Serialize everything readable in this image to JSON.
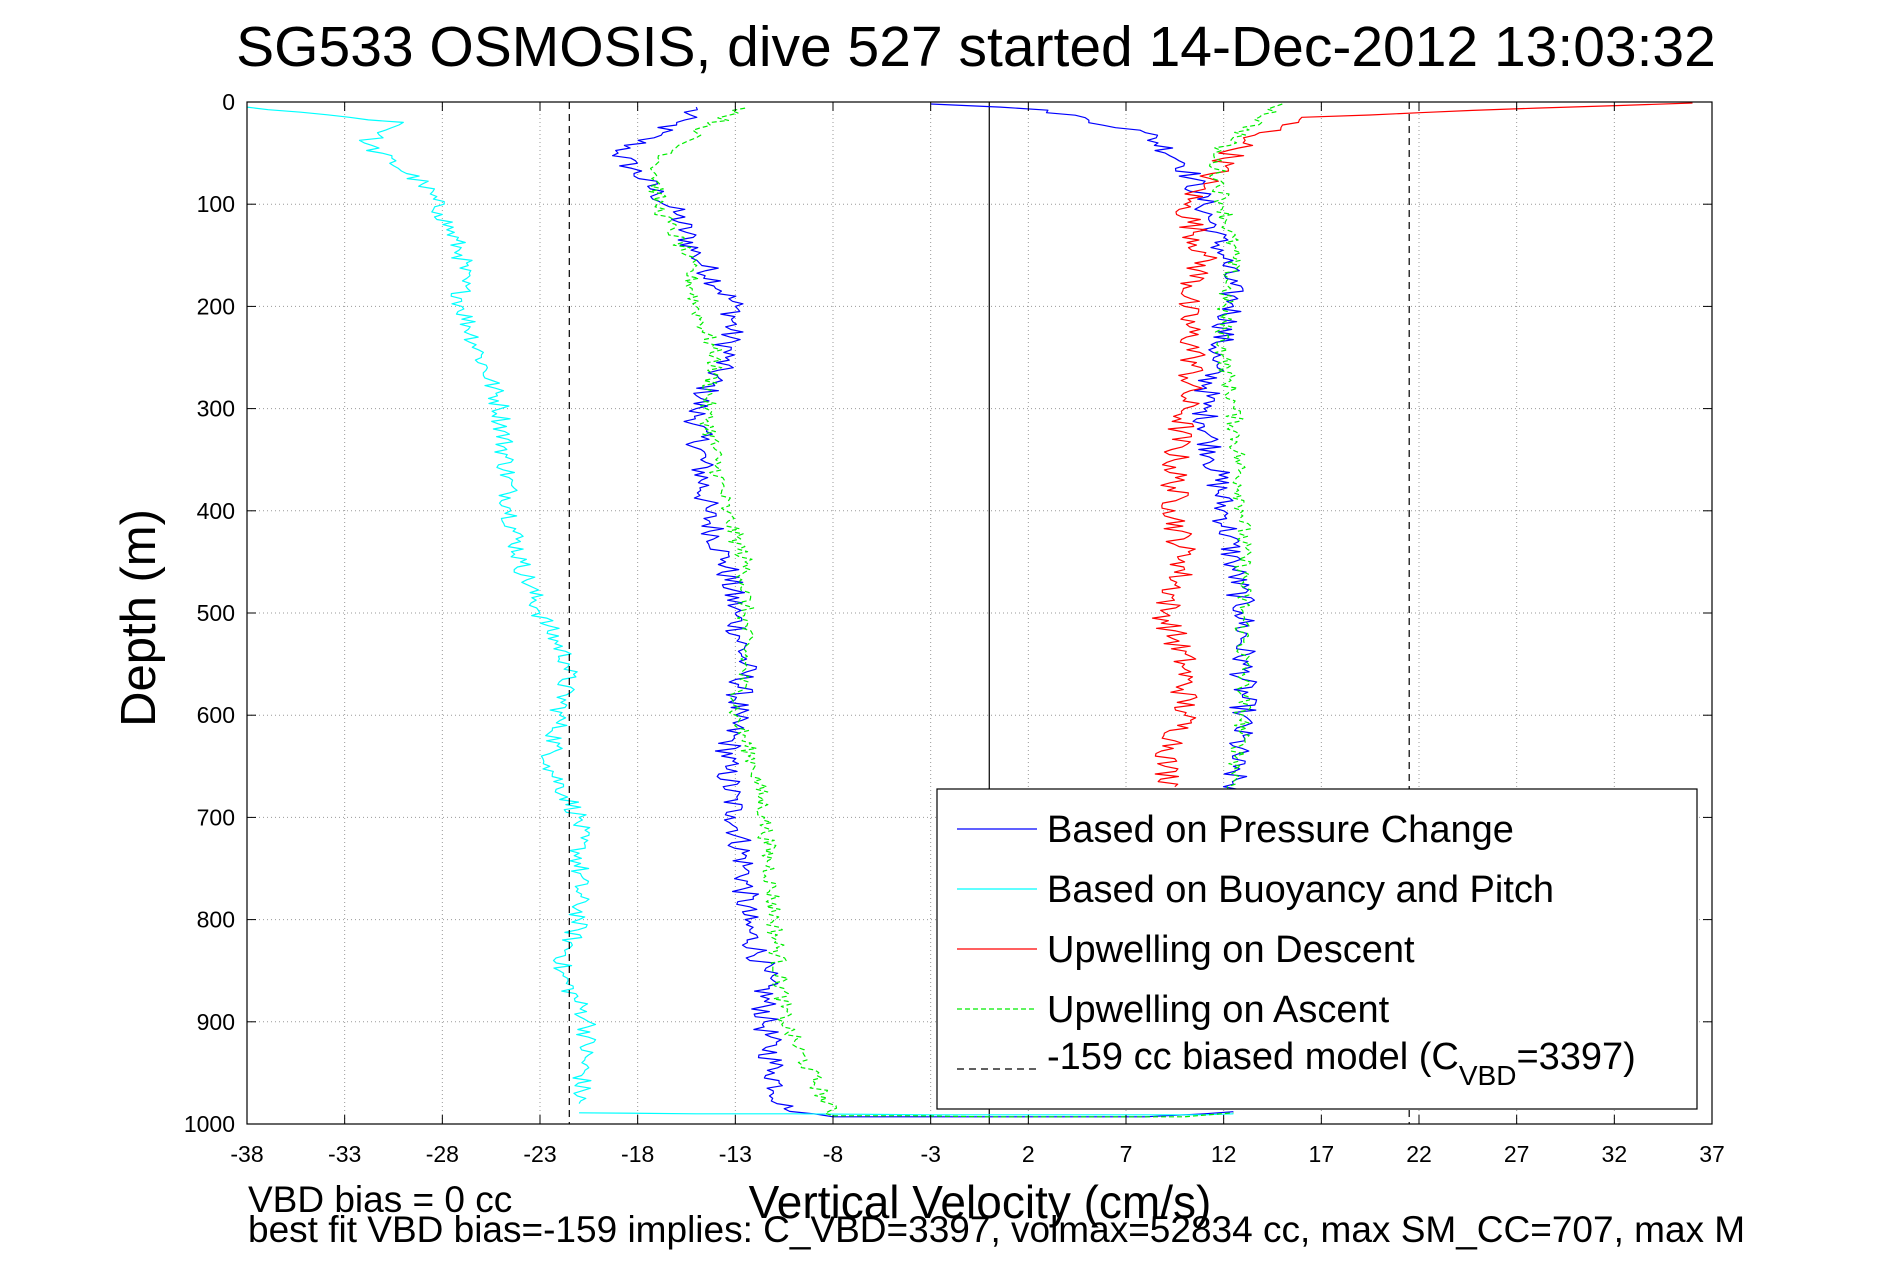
{
  "chart_data": {
    "type": "line",
    "title": "SG533 OSMOSIS, dive 527 started 14-Dec-2012 13:03:32",
    "xlabel": "Vertical Velocity (cm/s)",
    "ylabel": "Depth (m)",
    "xlim": [
      -38,
      37
    ],
    "ylim": [
      0,
      1000
    ],
    "y_reversed": true,
    "grid": true,
    "x_ticks": [
      -38,
      -33,
      -28,
      -23,
      -18,
      -13,
      -8,
      -3,
      2,
      7,
      12,
      17,
      22,
      27,
      32,
      37
    ],
    "y_ticks": [
      0,
      100,
      200,
      300,
      400,
      500,
      600,
      700,
      800,
      900,
      1000
    ],
    "legend_position": "lower-right",
    "series": [
      {
        "name": "Based on Pressure Change",
        "color": "#0000ff",
        "style": "solid",
        "segments": [
          {
            "x": [
              -15,
              -16,
              -19,
              -17,
              -16,
              -15,
              -13,
              -13.5,
              -15,
              -14.5,
              -13.5,
              -13,
              -12.5,
              -13,
              -13.5,
              -13,
              -12.5,
              -12.5,
              -11.5,
              -11.5,
              -11,
              -10.5,
              -8
            ],
            "y": [
              5,
              20,
              50,
              90,
              110,
              150,
              200,
              250,
              300,
              400,
              450,
              500,
              550,
              600,
              650,
              700,
              750,
              800,
              850,
              900,
              950,
              985,
              993
            ]
          },
          {
            "x": [
              -8,
              -5,
              0,
              5,
              8,
              11,
              12.5
            ],
            "y": [
              993,
              993,
              993,
              993,
              993,
              990,
              988
            ]
          },
          {
            "x": [
              -3,
              3,
              8,
              10,
              11,
              12,
              12.5,
              11.5,
              11,
              11.5,
              12,
              12.5,
              13,
              13,
              13,
              12.5,
              12.5
            ],
            "y": [
              2,
              8,
              30,
              60,
              100,
              150,
              200,
              250,
              300,
              350,
              400,
              450,
              500,
              550,
              600,
              650,
              690
            ]
          }
        ]
      },
      {
        "name": "Based on Buoyancy and Pitch",
        "color": "#00ffff",
        "style": "solid",
        "segments": [
          {
            "x": [
              -38,
              -30,
              -32,
              -29,
              -28,
              -27,
              -27,
              -26,
              -25,
              -24.5,
              -24,
              -23,
              -21.5,
              -22,
              -22.5,
              -21,
              -21,
              -22,
              -20.5,
              -21
            ],
            "y": [
              5,
              20,
              40,
              80,
              110,
              150,
              200,
              250,
              300,
              400,
              450,
              500,
              550,
              600,
              650,
              700,
              800,
              850,
              900,
              980
            ]
          },
          {
            "x": [
              -21,
              -15,
              -10,
              -3,
              1,
              6,
              11,
              12.5
            ],
            "y": [
              989,
              990,
              990,
              991,
              991,
              991,
              991,
              990
            ]
          }
        ]
      },
      {
        "name": "Upwelling on Descent",
        "color": "#ff0000",
        "style": "solid",
        "segments": [
          {
            "x": [
              36,
              28,
              16,
              13,
              11,
              10,
              11,
              10,
              10.5,
              10,
              9.5,
              9.5,
              10,
              9,
              10,
              10,
              9.5,
              9,
              9.5
            ],
            "y": [
              1,
              6,
              15,
              40,
              80,
              100,
              150,
              200,
              250,
              300,
              350,
              400,
              450,
              500,
              550,
              600,
              625,
              650,
              670
            ]
          }
        ]
      },
      {
        "name": "Upwelling on Ascent",
        "color": "#00ee00",
        "style": "dashed",
        "segments": [
          {
            "x": [
              -12.5,
              -15,
              -17,
              -17,
              -15.5,
              -15,
              -14,
              -14.5,
              -14,
              -13.5,
              -12.5,
              -12.5,
              -12.5,
              -13,
              -12,
              -11.5,
              -11,
              -10.5,
              -8
            ],
            "y": [
              6,
              30,
              60,
              100,
              150,
              200,
              250,
              300,
              350,
              400,
              450,
              500,
              550,
              600,
              650,
              700,
              800,
              900,
              992
            ]
          },
          {
            "x": [
              -8,
              -4,
              0,
              5,
              10,
              12.5
            ],
            "y": [
              992,
              992,
              993,
              993,
              993,
              989
            ]
          },
          {
            "x": [
              15,
              11.5,
              12,
              12.5,
              12,
              12,
              12.5,
              13,
              13,
              13,
              12.5
            ],
            "y": [
              2,
              50,
              100,
              150,
              200,
              250,
              300,
              400,
              500,
              600,
              680
            ]
          }
        ]
      },
      {
        "name": "-159 cc biased model (C",
        "name_sub": "VBD",
        "name_tail": "=3397)",
        "color": "#000000",
        "style": "dashed",
        "segments": [
          {
            "x": [
              -21.5,
              -21.5
            ],
            "y": [
              0,
              1000
            ]
          },
          {
            "x": [
              21.5,
              21.5
            ],
            "y": [
              0,
              1000
            ]
          }
        ]
      }
    ],
    "reference_lines": [
      {
        "x": 0,
        "color": "#000000",
        "style": "solid"
      }
    ],
    "annotations": [
      "VBD bias = 0 cc",
      "best fit VBD bias=-159 implies: C_VBD=3397, volmax=52834 cc, max SM_CC=707, max M"
    ]
  }
}
